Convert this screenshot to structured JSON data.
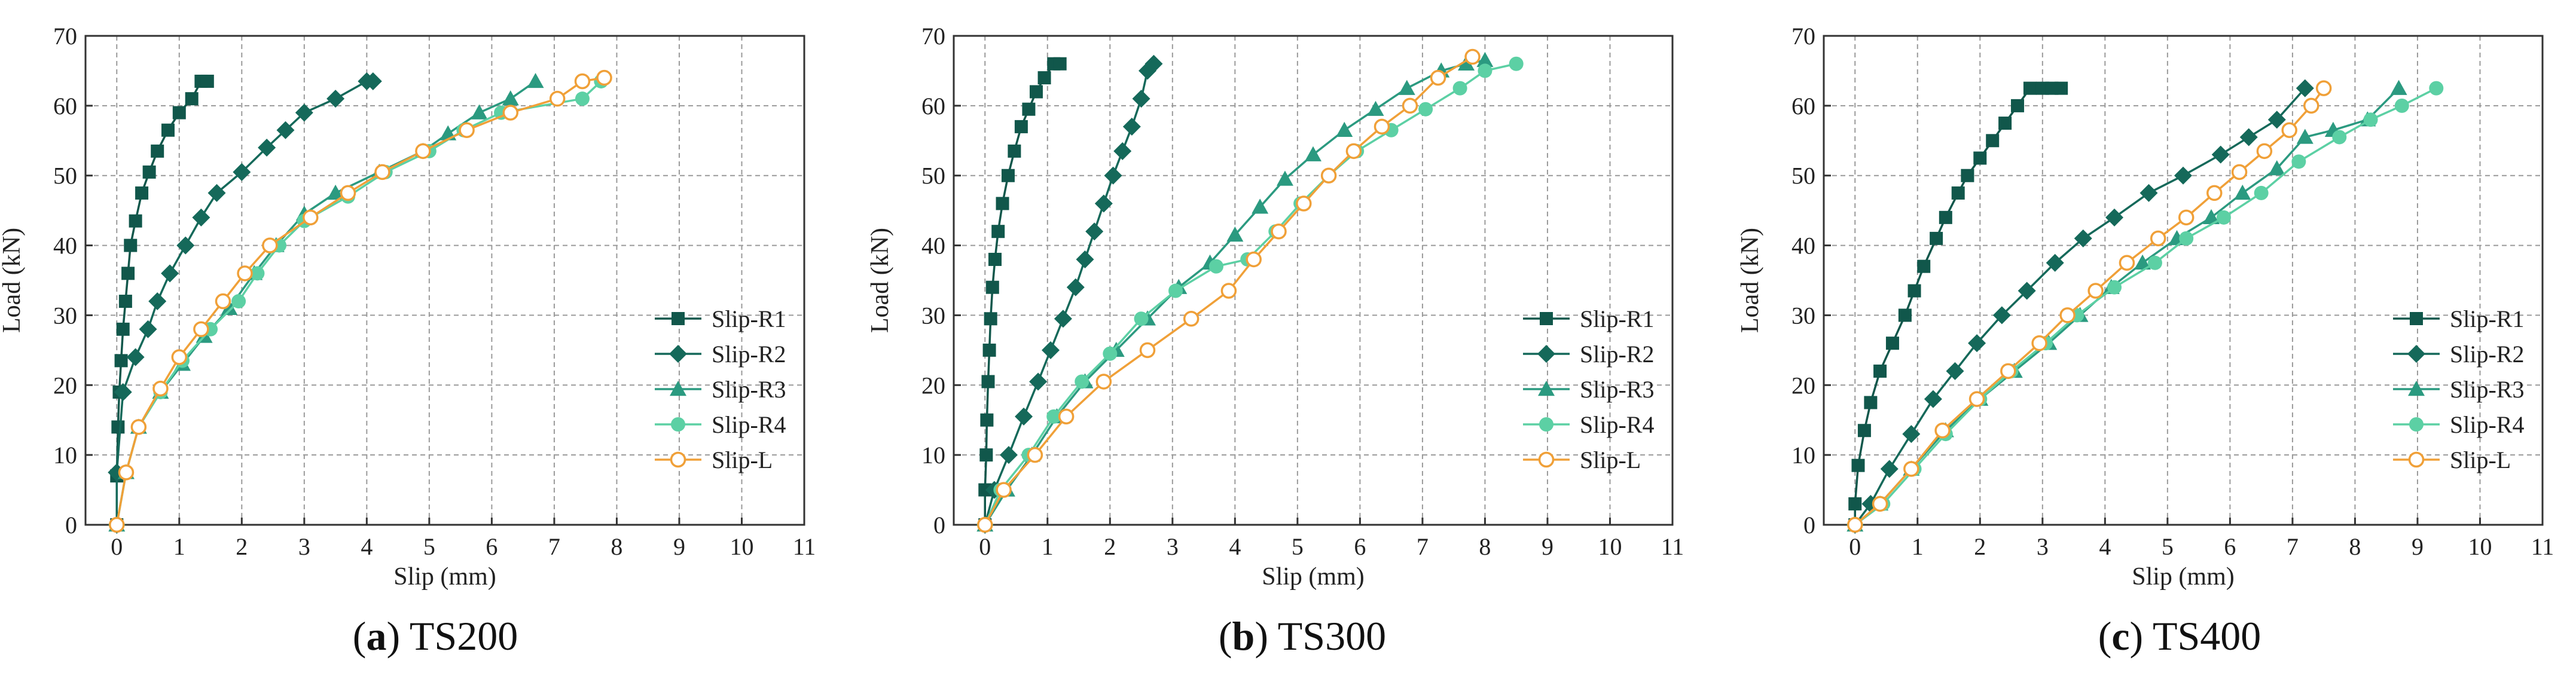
{
  "colors": {
    "r1": "#11574b",
    "r2": "#15695a",
    "r3": "#2b9a80",
    "r4": "#5cd0a4",
    "l": "#f0a038",
    "grid": "#9a9a9a",
    "axis": "#333333"
  },
  "captions": [
    {
      "tag": "a",
      "name": "TS200"
    },
    {
      "tag": "b",
      "name": "TS300"
    },
    {
      "tag": "c",
      "name": "TS400"
    }
  ],
  "chart_data": [
    {
      "type": "line",
      "title": "",
      "caption": "(a) TS200",
      "xlabel": "Slip (mm)",
      "ylabel": "Load (kN)",
      "xlim": [
        -0.5,
        11
      ],
      "ylim": [
        0,
        70
      ],
      "xticks": [
        0,
        1,
        2,
        3,
        4,
        5,
        6,
        7,
        8,
        9,
        10,
        11
      ],
      "yticks": [
        0,
        10,
        20,
        30,
        40,
        50,
        60,
        70
      ],
      "grid": true,
      "legend_position": "bottom-right",
      "series": [
        {
          "name": "Slip-R1",
          "marker": "square",
          "color_key": "r1",
          "x": [
            0,
            0,
            0.02,
            0.04,
            0.07,
            0.1,
            0.14,
            0.18,
            0.22,
            0.3,
            0.4,
            0.52,
            0.65,
            0.82,
            1.0,
            1.2,
            1.35,
            1.45
          ],
          "y": [
            0,
            7,
            14,
            19,
            23.5,
            28,
            32,
            36,
            40,
            43.5,
            47.5,
            50.5,
            53.5,
            56.5,
            59,
            61,
            63.5,
            63.5
          ]
        },
        {
          "name": "Slip-R2",
          "marker": "diamond",
          "color_key": "r2",
          "x": [
            0,
            0,
            0.1,
            0.3,
            0.5,
            0.65,
            0.85,
            1.1,
            1.35,
            1.6,
            2.0,
            2.4,
            2.7,
            3.0,
            3.5,
            4.0,
            4.1
          ],
          "y": [
            0,
            7.5,
            19,
            24,
            28,
            32,
            36,
            40,
            44,
            47.5,
            50.5,
            54,
            56.5,
            59,
            61,
            63.5,
            63.5
          ]
        },
        {
          "name": "Slip-R3",
          "marker": "triangle",
          "color_key": "r3",
          "x": [
            0,
            0.15,
            0.35,
            0.7,
            1.05,
            1.4,
            1.8,
            2.2,
            2.55,
            3.0,
            3.5,
            4.2,
            4.9,
            5.3,
            5.8,
            6.3,
            6.7
          ],
          "y": [
            0,
            7.5,
            14,
            19,
            23,
            27,
            31,
            36,
            40,
            44.5,
            47.5,
            50.5,
            53.5,
            56,
            59,
            61,
            63.5
          ]
        },
        {
          "name": "Slip-R4",
          "marker": "circle-filled",
          "color_key": "r4",
          "x": [
            0,
            0.15,
            0.35,
            0.7,
            1.05,
            1.5,
            1.95,
            2.25,
            2.6,
            3.0,
            3.7,
            4.3,
            5.0,
            5.55,
            6.15,
            7.45,
            7.75
          ],
          "y": [
            0,
            7.5,
            14,
            19,
            23.5,
            28,
            32,
            36,
            40,
            43.5,
            47,
            50.5,
            53.5,
            56.5,
            59,
            61,
            63.5
          ]
        },
        {
          "name": "Slip-L",
          "marker": "circle-open",
          "color_key": "l",
          "x": [
            0,
            0.15,
            0.35,
            0.7,
            1.0,
            1.35,
            1.7,
            2.05,
            2.45,
            3.1,
            3.7,
            4.25,
            4.9,
            5.6,
            6.3,
            7.05,
            7.45,
            7.8
          ],
          "y": [
            0,
            7.5,
            14,
            19.5,
            24,
            28,
            32,
            36,
            40,
            44,
            47.5,
            50.5,
            53.5,
            56.5,
            59,
            61,
            63.5,
            64
          ]
        }
      ]
    },
    {
      "type": "line",
      "title": "",
      "caption": "(b) TS300",
      "xlabel": "Slip (mm)",
      "ylabel": "Load (kN)",
      "xlim": [
        -0.5,
        11
      ],
      "ylim": [
        0,
        70
      ],
      "xticks": [
        0,
        1,
        2,
        3,
        4,
        5,
        6,
        7,
        8,
        9,
        10,
        11
      ],
      "yticks": [
        0,
        10,
        20,
        30,
        40,
        50,
        60,
        70
      ],
      "grid": true,
      "legend_position": "bottom-right",
      "series": [
        {
          "name": "Slip-R1",
          "marker": "square",
          "color_key": "r1",
          "x": [
            0,
            0,
            0.02,
            0.03,
            0.05,
            0.07,
            0.09,
            0.12,
            0.16,
            0.21,
            0.28,
            0.37,
            0.47,
            0.58,
            0.7,
            0.82,
            0.95,
            1.1,
            1.2
          ],
          "y": [
            0,
            5,
            10,
            15,
            20.5,
            25,
            29.5,
            34,
            38,
            42,
            46,
            50,
            53.5,
            57,
            59.5,
            62,
            64,
            66,
            66
          ]
        },
        {
          "name": "Slip-R2",
          "marker": "diamond",
          "color_key": "r2",
          "x": [
            0,
            0.15,
            0.38,
            0.62,
            0.85,
            1.05,
            1.25,
            1.45,
            1.6,
            1.75,
            1.9,
            2.05,
            2.2,
            2.35,
            2.5,
            2.6,
            2.7
          ],
          "y": [
            0,
            5,
            10,
            15.5,
            20.5,
            25,
            29.5,
            34,
            38,
            42,
            46,
            50,
            53.5,
            57,
            61,
            65,
            66
          ]
        },
        {
          "name": "Slip-R3",
          "marker": "triangle",
          "color_key": "r3",
          "x": [
            0,
            0.35,
            0.75,
            1.15,
            1.6,
            2.1,
            2.6,
            3.1,
            3.6,
            4.0,
            4.4,
            4.8,
            5.25,
            5.75,
            6.25,
            6.75,
            7.3,
            7.7,
            8.0
          ],
          "y": [
            0,
            5,
            10,
            15.5,
            20.5,
            25,
            29.5,
            34,
            37.5,
            41.5,
            45.5,
            49.5,
            53,
            56.5,
            59.5,
            62.5,
            65,
            66,
            66.5
          ]
        },
        {
          "name": "Slip-R4",
          "marker": "circle-filled",
          "color_key": "r4",
          "x": [
            0,
            0.25,
            0.7,
            1.1,
            1.55,
            2.0,
            2.5,
            3.05,
            3.7,
            4.2,
            4.65,
            5.05,
            5.5,
            5.95,
            6.5,
            7.05,
            7.6,
            8.0,
            8.5
          ],
          "y": [
            0,
            5,
            10,
            15.5,
            20.5,
            24.5,
            29.5,
            33.5,
            37,
            38,
            42,
            46,
            50,
            53.5,
            56.5,
            59.5,
            62.5,
            65,
            66
          ]
        },
        {
          "name": "Slip-L",
          "marker": "circle-open",
          "color_key": "l",
          "x": [
            0,
            0.3,
            0.8,
            1.3,
            1.9,
            2.6,
            3.3,
            3.9,
            4.3,
            4.7,
            5.1,
            5.5,
            5.9,
            6.35,
            6.8,
            7.25,
            7.8
          ],
          "y": [
            0,
            5,
            10,
            15.5,
            20.5,
            25,
            29.5,
            33.5,
            38,
            42,
            46,
            50,
            53.5,
            57,
            60,
            64,
            67
          ]
        }
      ]
    },
    {
      "type": "line",
      "title": "",
      "caption": "(c) TS400",
      "xlabel": "Slip (mm)",
      "ylabel": "Load (kN)",
      "xlim": [
        -0.5,
        11
      ],
      "ylim": [
        0,
        70
      ],
      "xticks": [
        0,
        1,
        2,
        3,
        4,
        5,
        6,
        7,
        8,
        9,
        10,
        11
      ],
      "yticks": [
        0,
        10,
        20,
        30,
        40,
        50,
        60,
        70
      ],
      "grid": true,
      "legend_position": "bottom-right",
      "series": [
        {
          "name": "Slip-R1",
          "marker": "square",
          "color_key": "r1",
          "x": [
            0,
            0,
            0.05,
            0.15,
            0.25,
            0.4,
            0.6,
            0.8,
            0.95,
            1.1,
            1.3,
            1.45,
            1.65,
            1.8,
            2.0,
            2.2,
            2.4,
            2.6,
            2.8,
            3.0,
            3.15,
            3.3
          ],
          "y": [
            0,
            3,
            8.5,
            13.5,
            17.5,
            22,
            26,
            30,
            33.5,
            37,
            41,
            44,
            47.5,
            50,
            52.5,
            55,
            57.5,
            60,
            62.5,
            62.5,
            62.5,
            62.5
          ]
        },
        {
          "name": "Slip-R2",
          "marker": "diamond",
          "color_key": "r2",
          "x": [
            0,
            0.25,
            0.55,
            0.9,
            1.25,
            1.6,
            1.95,
            2.35,
            2.75,
            3.2,
            3.65,
            4.15,
            4.7,
            5.25,
            5.85,
            6.3,
            6.75,
            7.2
          ],
          "y": [
            0,
            3,
            8,
            13,
            18,
            22,
            26,
            30,
            33.5,
            37.5,
            41,
            44,
            47.5,
            50,
            53,
            55.5,
            58,
            62.5
          ]
        },
        {
          "name": "Slip-R3",
          "marker": "triangle",
          "color_key": "r3",
          "x": [
            0,
            0.4,
            0.9,
            1.45,
            2.0,
            2.55,
            3.1,
            3.6,
            4.1,
            4.6,
            5.15,
            5.7,
            6.2,
            6.75,
            7.2,
            7.65,
            8.2,
            8.7
          ],
          "y": [
            0,
            3,
            8,
            13.5,
            18,
            22,
            26,
            30,
            34,
            37.5,
            41,
            44,
            47.5,
            51,
            55.5,
            56.5,
            58,
            62.5
          ]
        },
        {
          "name": "Slip-R4",
          "marker": "circle-filled",
          "color_key": "r4",
          "x": [
            0,
            0.45,
            0.95,
            1.45,
            2.0,
            2.5,
            3.05,
            3.55,
            4.15,
            4.8,
            5.3,
            5.9,
            6.5,
            7.1,
            7.75,
            8.25,
            8.75,
            9.3
          ],
          "y": [
            0,
            3,
            8,
            13,
            18,
            22,
            26,
            30,
            34,
            37.5,
            41,
            44,
            47.5,
            52,
            55.5,
            58,
            60,
            62.5
          ]
        },
        {
          "name": "Slip-L",
          "marker": "circle-open",
          "color_key": "l",
          "x": [
            0,
            0.4,
            0.9,
            1.4,
            1.95,
            2.45,
            2.95,
            3.4,
            3.85,
            4.35,
            4.85,
            5.3,
            5.75,
            6.15,
            6.55,
            6.95,
            7.3,
            7.5
          ],
          "y": [
            0,
            3,
            8,
            13.5,
            18,
            22,
            26,
            30,
            33.5,
            37.5,
            41,
            44,
            47.5,
            50.5,
            53.5,
            56.5,
            60,
            62.5
          ]
        }
      ]
    }
  ]
}
